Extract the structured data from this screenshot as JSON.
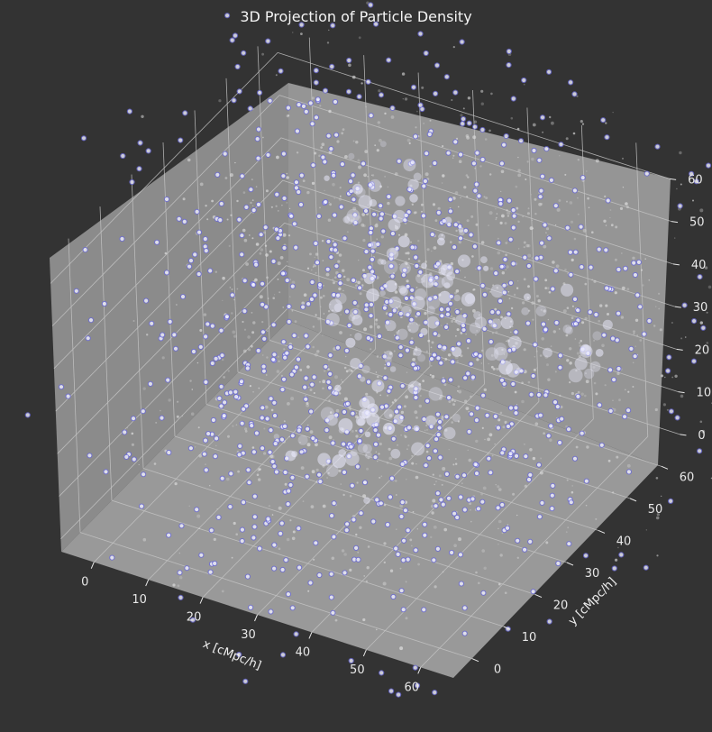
{
  "chart_data": {
    "type": "scatter",
    "projection": "3d",
    "title": "3D Projection of Particle Density",
    "xlabel": "x [cMpc/h]",
    "ylabel": "y [cMpc/h]",
    "zlabel": "",
    "xlim": [
      -6,
      66
    ],
    "ylim": [
      -6,
      66
    ],
    "zlim": [
      -3,
      66
    ],
    "xticks": [
      0,
      10,
      20,
      30,
      40,
      50,
      60
    ],
    "yticks": [
      0,
      10,
      20,
      30,
      40,
      50,
      60
    ],
    "zticks": [
      0,
      10,
      20,
      30,
      40,
      50,
      60
    ],
    "grid": true,
    "series": [
      {
        "marker": "faint dots",
        "color": "#dcdcdc",
        "points": [
          [
            20,
            54,
            44
          ],
          [
            30,
            47,
            40
          ],
          [
            44,
            38,
            41
          ],
          [
            26,
            38,
            32
          ],
          [
            38,
            26,
            24
          ],
          [
            34,
            17,
            22
          ],
          [
            56,
            44,
            34
          ]
        ]
      },
      {
        "marker": "open circle",
        "color": "#6a6ad8",
        "fill": "#f2f2ff",
        "points": [
          [
            12,
            52,
            45
          ],
          [
            22,
            44,
            38
          ],
          [
            34,
            36,
            30
          ],
          [
            46,
            48,
            43
          ],
          [
            50,
            30,
            28
          ],
          [
            18,
            22,
            20
          ],
          [
            40,
            12,
            14
          ]
        ]
      }
    ],
    "colors": {
      "background": "#333333",
      "pane": "#8f8f8f",
      "grid": "#c4c4c4",
      "text": "#e8e8e8"
    }
  }
}
